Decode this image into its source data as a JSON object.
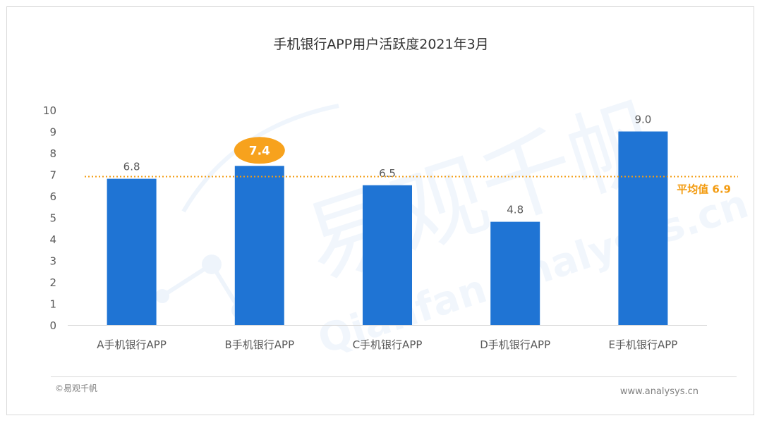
{
  "chart_data": {
    "type": "bar",
    "title": "手机银行APP用户活跃度2021年3月",
    "categories": [
      "A手机银行APP",
      "B手机银行APP",
      "C手机银行APP",
      "D手机银行APP",
      "E手机银行APP"
    ],
    "values": [
      6.8,
      7.4,
      6.5,
      4.8,
      9.0
    ],
    "value_labels": [
      "6.8",
      "7.4",
      "6.5",
      "4.8",
      "9.0"
    ],
    "highlight_index": 1,
    "ylim": [
      0,
      10
    ],
    "yticks": [
      "0",
      "1",
      "2",
      "3",
      "4",
      "5",
      "6",
      "7",
      "8",
      "9",
      "10"
    ],
    "average": {
      "value": 6.9,
      "label": "平均值 6.9"
    },
    "grid": false,
    "legend": "none",
    "colors": {
      "bar": "#1f74d4",
      "highlight_badge": "#f7a21d",
      "average_line": "#f39c12",
      "axis_text": "#595959"
    }
  },
  "footer": {
    "copyright": "©易观千帆",
    "site": "www.analysys.cn"
  },
  "watermark": {
    "text_cn": "易观千帆",
    "text_en": "Qianfan.analysys.cn"
  }
}
